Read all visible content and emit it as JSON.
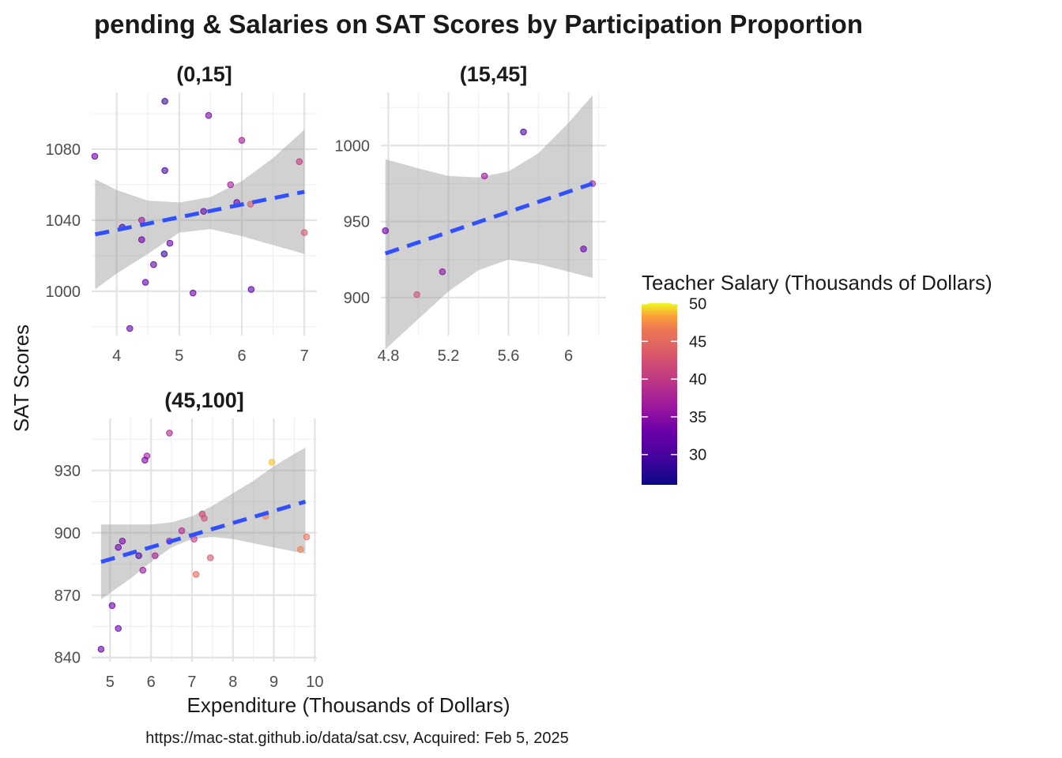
{
  "chart_data": {
    "type": "scatter",
    "title": "Spending & Salaries on SAT Scores by Participation Proportion",
    "title_visible": "pending & Salaries on SAT Scores by Participation Proportion",
    "xlabel": "Expenditure (Thousands of Dollars)",
    "ylabel": "SAT Scores",
    "caption": "https://mac-stat.github.io/data/sat.csv, Acquired: Feb 5, 2025",
    "legend": {
      "title": "Teacher Salary (Thousands of Dollars)",
      "position": "right",
      "range": [
        25.99,
        50.05
      ],
      "ticks": [
        30,
        35,
        40,
        45,
        50
      ],
      "colormap": "plasma"
    },
    "grid": true,
    "smooth": {
      "method": "linear",
      "line_color": "#3050ff",
      "line_style": "dashed",
      "band_color": "#c8c8c8"
    },
    "panels": [
      {
        "label": "(0,15]",
        "xlim": [
          3.6,
          7.2
        ],
        "ylim": [
          975,
          1112
        ],
        "xticks": [
          4,
          5,
          6,
          7
        ],
        "yticks": [
          1000,
          1040,
          1080
        ],
        "fit": {
          "x": [
            3.656,
            7.0
          ],
          "y": [
            1032,
            1056
          ]
        },
        "band": {
          "x": [
            3.656,
            4.0,
            4.5,
            5.0,
            5.5,
            6.0,
            6.5,
            7.0
          ],
          "upper": [
            1063,
            1057,
            1051,
            1050,
            1053,
            1062,
            1075,
            1091
          ],
          "lower": [
            1001,
            1010,
            1021,
            1033,
            1035,
            1031,
            1026,
            1021
          ]
        },
        "points": [
          {
            "x": 3.65,
            "y": 1076,
            "salary": 33
          },
          {
            "x": 4.09,
            "y": 1036,
            "salary": 30
          },
          {
            "x": 4.77,
            "y": 1107,
            "salary": 29
          },
          {
            "x": 5.47,
            "y": 1099,
            "salary": 34
          },
          {
            "x": 6.0,
            "y": 1085,
            "salary": 37
          },
          {
            "x": 6.92,
            "y": 1073,
            "salary": 40
          },
          {
            "x": 4.77,
            "y": 1068,
            "salary": 30
          },
          {
            "x": 5.82,
            "y": 1060,
            "salary": 37
          },
          {
            "x": 5.92,
            "y": 1050,
            "salary": 33
          },
          {
            "x": 6.14,
            "y": 1049,
            "salary": 43
          },
          {
            "x": 5.39,
            "y": 1045,
            "salary": 32
          },
          {
            "x": 4.4,
            "y": 1040,
            "salary": 36
          },
          {
            "x": 7.0,
            "y": 1033,
            "salary": 43
          },
          {
            "x": 4.4,
            "y": 1029,
            "salary": 33
          },
          {
            "x": 4.85,
            "y": 1027,
            "salary": 33
          },
          {
            "x": 4.76,
            "y": 1021,
            "salary": 29
          },
          {
            "x": 4.59,
            "y": 1015,
            "salary": 32
          },
          {
            "x": 4.46,
            "y": 1005,
            "salary": 32
          },
          {
            "x": 6.15,
            "y": 1001,
            "salary": 32
          },
          {
            "x": 5.22,
            "y": 999,
            "salary": 33
          },
          {
            "x": 4.21,
            "y": 979,
            "salary": 32
          }
        ]
      },
      {
        "label": "(15,45]",
        "xlim": [
          4.75,
          6.25
        ],
        "ylim": [
          875,
          1035
        ],
        "xticks": [
          4.8,
          5.2,
          5.6,
          6.0
        ],
        "yticks": [
          900,
          950,
          1000
        ],
        "fit": {
          "x": [
            4.78,
            6.16
          ],
          "y": [
            929,
            975
          ]
        },
        "band": {
          "x": [
            4.78,
            5.0,
            5.2,
            5.4,
            5.6,
            5.8,
            6.0,
            6.16
          ],
          "upper": [
            991,
            985,
            980,
            979,
            983,
            995,
            1015,
            1033
          ],
          "lower": [
            866,
            886,
            904,
            918,
            925,
            922,
            917,
            913
          ]
        },
        "points": [
          {
            "x": 4.78,
            "y": 944,
            "salary": 33
          },
          {
            "x": 4.99,
            "y": 902,
            "salary": 42
          },
          {
            "x": 5.16,
            "y": 917,
            "salary": 35
          },
          {
            "x": 5.44,
            "y": 980,
            "salary": 36
          },
          {
            "x": 5.7,
            "y": 1009,
            "salary": 30
          },
          {
            "x": 6.1,
            "y": 932,
            "salary": 33
          },
          {
            "x": 6.16,
            "y": 975,
            "salary": 38
          }
        ]
      },
      {
        "label": "(45,100]",
        "xlim": [
          4.55,
          10.05
        ],
        "ylim": [
          838,
          955
        ],
        "xticks": [
          5,
          6,
          7,
          8,
          9,
          10
        ],
        "yticks": [
          840,
          870,
          900,
          930
        ],
        "fit": {
          "x": [
            4.78,
            9.77
          ],
          "y": [
            886,
            915
          ]
        },
        "band": {
          "x": [
            4.78,
            5.5,
            6.0,
            6.5,
            7.0,
            7.5,
            8.0,
            8.5,
            9.0,
            9.5,
            9.77
          ],
          "upper": [
            904,
            904,
            904,
            905,
            908,
            913,
            919,
            925,
            932,
            938,
            941
          ],
          "lower": [
            868,
            878,
            886,
            893,
            897,
            898,
            897,
            895,
            893,
            891,
            890
          ]
        },
        "points": [
          {
            "x": 6.45,
            "y": 948,
            "salary": 38
          },
          {
            "x": 5.9,
            "y": 937,
            "salary": 37
          },
          {
            "x": 5.85,
            "y": 935,
            "salary": 34
          },
          {
            "x": 8.95,
            "y": 934,
            "salary": 49
          },
          {
            "x": 7.25,
            "y": 909,
            "salary": 41
          },
          {
            "x": 7.3,
            "y": 907,
            "salary": 42
          },
          {
            "x": 8.8,
            "y": 908,
            "salary": 47
          },
          {
            "x": 6.75,
            "y": 901,
            "salary": 38
          },
          {
            "x": 7.05,
            "y": 897,
            "salary": 40
          },
          {
            "x": 9.8,
            "y": 898,
            "salary": 46
          },
          {
            "x": 6.45,
            "y": 896,
            "salary": 37
          },
          {
            "x": 5.3,
            "y": 896,
            "salary": 34
          },
          {
            "x": 5.2,
            "y": 893,
            "salary": 33
          },
          {
            "x": 9.65,
            "y": 892,
            "salary": 47
          },
          {
            "x": 5.7,
            "y": 889,
            "salary": 30
          },
          {
            "x": 6.1,
            "y": 889,
            "salary": 37
          },
          {
            "x": 7.45,
            "y": 888,
            "salary": 43
          },
          {
            "x": 5.8,
            "y": 882,
            "salary": 36
          },
          {
            "x": 7.1,
            "y": 880,
            "salary": 45
          },
          {
            "x": 5.05,
            "y": 865,
            "salary": 33
          },
          {
            "x": 5.2,
            "y": 854,
            "salary": 33
          },
          {
            "x": 4.78,
            "y": 844,
            "salary": 32
          }
        ]
      }
    ]
  }
}
